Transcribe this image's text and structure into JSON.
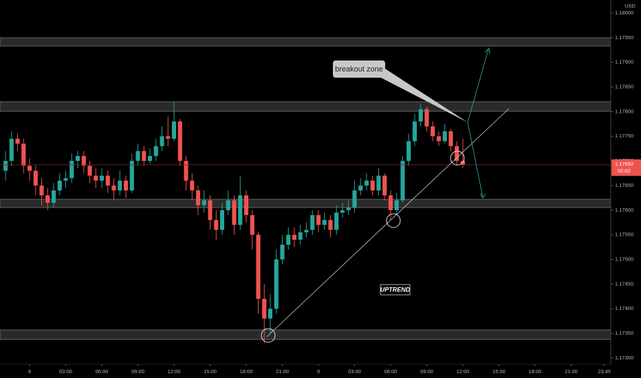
{
  "chart_data": {
    "type": "candlestick",
    "currency": "USD",
    "up_color": "#26a69a",
    "down_color": "#ef5350",
    "xlim": [
      -2.46,
      48.29
    ],
    "ylim": [
      1.172873,
      1.180265
    ],
    "xticks": [
      {
        "value": 0,
        "label": "8"
      },
      {
        "value": 3,
        "label": "03:00"
      },
      {
        "value": 6,
        "label": "06:00"
      },
      {
        "value": 9,
        "label": "09:00"
      },
      {
        "value": 12,
        "label": "12:00"
      },
      {
        "value": 15,
        "label": "15:00"
      },
      {
        "value": 18,
        "label": "18:00"
      },
      {
        "value": 21,
        "label": "21:00"
      },
      {
        "value": 24,
        "label": "9"
      },
      {
        "value": 27,
        "label": "03:00"
      },
      {
        "value": 30,
        "label": "06:00"
      },
      {
        "value": 33,
        "label": "09:00"
      },
      {
        "value": 36,
        "label": "12:00"
      },
      {
        "value": 39,
        "label": "15:00"
      },
      {
        "value": 42,
        "label": "18:00"
      },
      {
        "value": 45,
        "label": "21:00"
      },
      {
        "value": 47.75,
        "label": "23:45"
      }
    ],
    "yticks": [
      {
        "value": 1.18,
        "label": "1.18000"
      },
      {
        "value": 1.1795,
        "label": "1.17950"
      },
      {
        "value": 1.179,
        "label": "1.17900"
      },
      {
        "value": 1.1785,
        "label": "1.17850"
      },
      {
        "value": 1.178,
        "label": "1.17800"
      },
      {
        "value": 1.1775,
        "label": "1.17750"
      },
      {
        "value": 1.177,
        "label": "1.17700"
      },
      {
        "value": 1.1765,
        "label": "1.17650"
      },
      {
        "value": 1.176,
        "label": "1.17600"
      },
      {
        "value": 1.1755,
        "label": "1.17550"
      },
      {
        "value": 1.175,
        "label": "1.17500"
      },
      {
        "value": 1.1745,
        "label": "1.17450"
      },
      {
        "value": 1.174,
        "label": "1.17400"
      },
      {
        "value": 1.1735,
        "label": "1.17350"
      },
      {
        "value": 1.173,
        "label": "1.17300"
      }
    ],
    "last_price": {
      "value": 1.17692,
      "label": "1.17692"
    },
    "countdown": "02:02",
    "annotations": {
      "callout": "breakout zone",
      "tag": "UPTREND"
    },
    "x": [
      -2,
      -1.5,
      -1,
      -0.5,
      0,
      0.5,
      1,
      1.5,
      2,
      2.5,
      3,
      3.5,
      4,
      4.5,
      5,
      5.5,
      6,
      6.5,
      7,
      7.5,
      8,
      8.5,
      9,
      9.5,
      10,
      10.5,
      11,
      11.5,
      12,
      12.5,
      13,
      13.5,
      14,
      14.5,
      15,
      15.5,
      16,
      16.5,
      17,
      17.5,
      18,
      18.5,
      19,
      19.5,
      20,
      20.5,
      21,
      21.5,
      22,
      22.5,
      23,
      23.5,
      24,
      24.5,
      25,
      25.5,
      26,
      26.5,
      27,
      27.5,
      28,
      28.5,
      29,
      29.5,
      30,
      30.5,
      31,
      31.5,
      32,
      32.5,
      33,
      33.5,
      34,
      34.5,
      35,
      35.5,
      36
    ],
    "open": [
      1.1768,
      1.177,
      1.17745,
      1.17735,
      1.1769,
      1.1768,
      1.1765,
      1.1763,
      1.17615,
      1.1764,
      1.1766,
      1.17665,
      1.177,
      1.1771,
      1.1769,
      1.1767,
      1.1766,
      1.1767,
      1.1765,
      1.1764,
      1.1766,
      1.1764,
      1.177,
      1.1772,
      1.177,
      1.1771,
      1.1773,
      1.1775,
      1.17745,
      1.1778,
      1.177,
      1.1766,
      1.1764,
      1.1761,
      1.1762,
      1.1758,
      1.1756,
      1.176,
      1.1762,
      1.1757,
      1.1763,
      1.1759,
      1.1755,
      1.1742,
      1.1738,
      1.174,
      1.175,
      1.1753,
      1.1755,
      1.1754,
      1.17555,
      1.1756,
      1.1759,
      1.1757,
      1.1758,
      1.1756,
      1.17595,
      1.176,
      1.17605,
      1.1764,
      1.1765,
      1.1766,
      1.1764,
      1.1767,
      1.1763,
      1.176,
      1.1762,
      1.177,
      1.1774,
      1.1778,
      1.17805,
      1.1777,
      1.1775,
      1.1774,
      1.1776,
      1.1773,
      1.177
    ],
    "high": [
      1.1772,
      1.1776,
      1.17755,
      1.17745,
      1.17705,
      1.1769,
      1.17665,
      1.17645,
      1.17655,
      1.17675,
      1.1768,
      1.17715,
      1.1772,
      1.1772,
      1.177,
      1.17685,
      1.17685,
      1.1768,
      1.17665,
      1.1768,
      1.1767,
      1.17715,
      1.17735,
      1.1773,
      1.17725,
      1.17745,
      1.1777,
      1.1779,
      1.1782,
      1.17785,
      1.1771,
      1.17675,
      1.1765,
      1.1764,
      1.1763,
      1.176,
      1.17615,
      1.1764,
      1.1763,
      1.1767,
      1.1764,
      1.176,
      1.17555,
      1.1745,
      1.1743,
      1.1752,
      1.1755,
      1.17565,
      1.17565,
      1.1757,
      1.17575,
      1.176,
      1.176,
      1.17595,
      1.1759,
      1.1761,
      1.17615,
      1.1762,
      1.1766,
      1.17665,
      1.17675,
      1.1767,
      1.17685,
      1.17675,
      1.1764,
      1.17635,
      1.1771,
      1.17755,
      1.17795,
      1.17815,
      1.1781,
      1.1778,
      1.1776,
      1.17775,
      1.17765,
      1.1774,
      1.17745
    ],
    "low": [
      1.1766,
      1.1769,
      1.1772,
      1.17675,
      1.1766,
      1.1763,
      1.1761,
      1.176,
      1.17605,
      1.1763,
      1.17645,
      1.17655,
      1.17685,
      1.17675,
      1.17655,
      1.17645,
      1.17645,
      1.17635,
      1.1762,
      1.1763,
      1.17625,
      1.17635,
      1.1769,
      1.1769,
      1.17695,
      1.177,
      1.1772,
      1.1773,
      1.1774,
      1.1769,
      1.1764,
      1.1762,
      1.1759,
      1.17595,
      1.1756,
      1.1754,
      1.1755,
      1.1759,
      1.1755,
      1.1756,
      1.17575,
      1.1752,
      1.1739,
      1.1733,
      1.1735,
      1.1739,
      1.1749,
      1.1752,
      1.17525,
      1.1753,
      1.17545,
      1.1755,
      1.17555,
      1.1756,
      1.17545,
      1.1755,
      1.17585,
      1.1759,
      1.17595,
      1.1763,
      1.1764,
      1.1763,
      1.1763,
      1.1762,
      1.1758,
      1.1759,
      1.17615,
      1.1769,
      1.1773,
      1.1777,
      1.1776,
      1.1774,
      1.1773,
      1.17735,
      1.1772,
      1.1769,
      1.17685
    ],
    "close": [
      1.177,
      1.17745,
      1.17735,
      1.1769,
      1.1768,
      1.1765,
      1.1763,
      1.17615,
      1.1764,
      1.1766,
      1.17665,
      1.177,
      1.1771,
      1.1769,
      1.1767,
      1.1766,
      1.1767,
      1.1765,
      1.1764,
      1.1766,
      1.1764,
      1.177,
      1.1772,
      1.177,
      1.1771,
      1.1773,
      1.1775,
      1.17745,
      1.1778,
      1.177,
      1.1766,
      1.1764,
      1.1761,
      1.1762,
      1.1758,
      1.1756,
      1.176,
      1.1762,
      1.1757,
      1.1763,
      1.1759,
      1.1755,
      1.1742,
      1.1738,
      1.174,
      1.175,
      1.1753,
      1.1755,
      1.1754,
      1.17555,
      1.1756,
      1.1759,
      1.1757,
      1.1758,
      1.1756,
      1.17595,
      1.176,
      1.17605,
      1.1764,
      1.1765,
      1.1766,
      1.1764,
      1.1767,
      1.1763,
      1.176,
      1.1762,
      1.177,
      1.1774,
      1.1778,
      1.17805,
      1.1777,
      1.1775,
      1.1774,
      1.1776,
      1.1773,
      1.177,
      1.17692
    ]
  }
}
